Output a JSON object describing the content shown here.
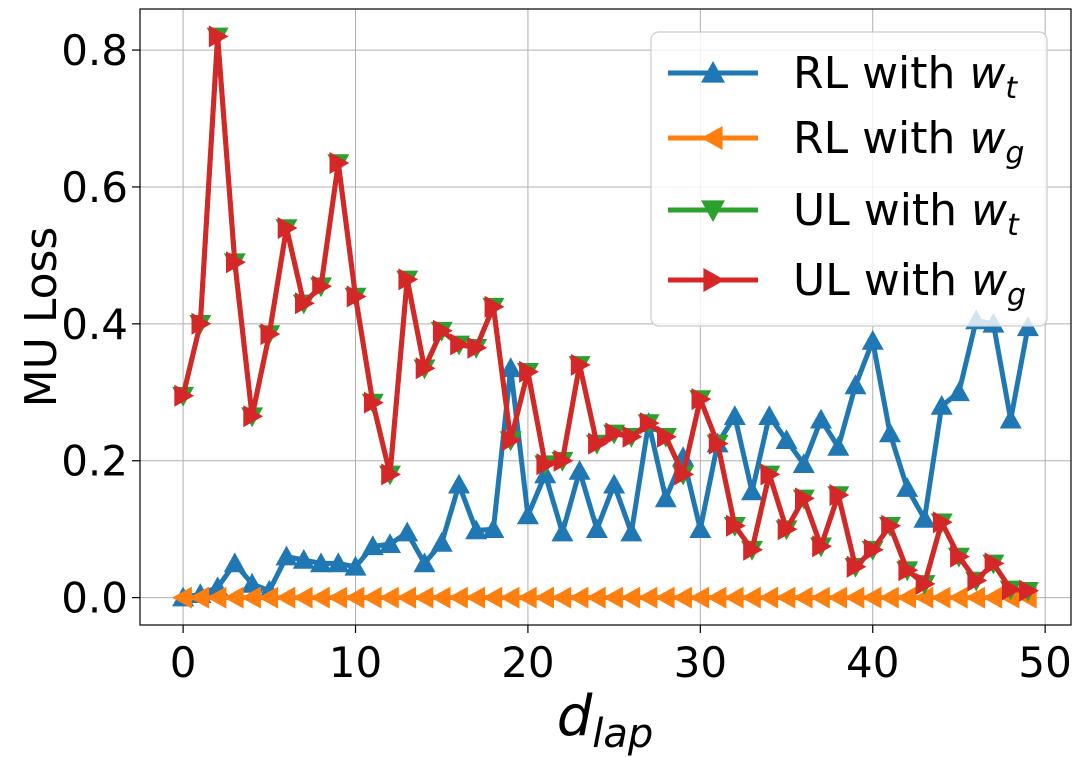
{
  "chart_data": {
    "type": "line",
    "xlabel": "d",
    "xlabel_sub": "lap",
    "ylabel": "MU Loss",
    "xlim": [
      -2.5,
      51.5
    ],
    "ylim": [
      -0.04,
      0.86
    ],
    "xticks": [
      0,
      10,
      20,
      30,
      40,
      50
    ],
    "xtick_labels": [
      "0",
      "10",
      "20",
      "30",
      "40",
      "50"
    ],
    "yticks": [
      0.0,
      0.2,
      0.4,
      0.6,
      0.8
    ],
    "ytick_labels": [
      "0.0",
      "0.2",
      "0.4",
      "0.6",
      "0.8"
    ],
    "grid": true,
    "legend_position": "top-right",
    "x": [
      0,
      1,
      2,
      3,
      4,
      5,
      6,
      7,
      8,
      9,
      10,
      11,
      12,
      13,
      14,
      15,
      16,
      17,
      18,
      19,
      20,
      21,
      22,
      23,
      24,
      25,
      26,
      27,
      28,
      29,
      30,
      31,
      32,
      33,
      34,
      35,
      36,
      37,
      38,
      39,
      40,
      41,
      42,
      43,
      44,
      45,
      46,
      47,
      48,
      49
    ],
    "series": [
      {
        "name": "RL with w",
        "name_var": "w",
        "name_sub": "t",
        "name_prefix": "RL with ",
        "color": "#1f77b4",
        "marker": "triangle-up",
        "values": [
          0.0,
          0.005,
          0.015,
          0.05,
          0.02,
          0.01,
          0.06,
          0.055,
          0.05,
          0.05,
          0.045,
          0.075,
          0.078,
          0.095,
          0.05,
          0.08,
          0.165,
          0.098,
          0.1,
          0.335,
          0.12,
          0.18,
          0.095,
          0.185,
          0.1,
          0.165,
          0.095,
          0.255,
          0.145,
          0.205,
          0.1,
          0.225,
          0.265,
          0.155,
          0.265,
          0.23,
          0.195,
          0.26,
          0.22,
          0.31,
          0.375,
          0.24,
          0.16,
          0.115,
          0.28,
          0.3,
          0.405,
          0.4,
          0.26,
          0.395
        ]
      },
      {
        "name": "RL with w",
        "name_var": "w",
        "name_sub": "g",
        "name_prefix": "RL with ",
        "color": "#ff7f0e",
        "marker": "triangle-left",
        "values": [
          0,
          0,
          0,
          0,
          0,
          0,
          0,
          0,
          0,
          0,
          0,
          0,
          0,
          0,
          0,
          0,
          0,
          0,
          0,
          0,
          0,
          0,
          0,
          0,
          0,
          0,
          0,
          0,
          0,
          0,
          0,
          0,
          0,
          0,
          0,
          0,
          0,
          0,
          0,
          0,
          0,
          0,
          0,
          0,
          0,
          0,
          0,
          0,
          0,
          0
        ]
      },
      {
        "name": "UL with w",
        "name_var": "w",
        "name_sub": "t",
        "name_prefix": "UL with ",
        "color": "#2ca02c",
        "marker": "triangle-down",
        "values": [
          0.295,
          0.4,
          0.82,
          0.49,
          0.265,
          0.385,
          0.54,
          0.43,
          0.455,
          0.635,
          0.44,
          0.285,
          0.18,
          0.465,
          0.335,
          0.39,
          0.37,
          0.365,
          0.425,
          0.23,
          0.33,
          0.195,
          0.2,
          0.34,
          0.225,
          0.24,
          0.235,
          0.255,
          0.235,
          0.18,
          0.29,
          0.225,
          0.105,
          0.07,
          0.18,
          0.1,
          0.145,
          0.075,
          0.15,
          0.045,
          0.07,
          0.105,
          0.04,
          0.02,
          0.11,
          0.06,
          0.025,
          0.05,
          0.012,
          0.01
        ]
      },
      {
        "name": "UL with w",
        "name_var": "w",
        "name_sub": "g",
        "name_prefix": "UL with ",
        "color": "#d62728",
        "marker": "triangle-right",
        "values": [
          0.295,
          0.4,
          0.82,
          0.49,
          0.265,
          0.385,
          0.54,
          0.43,
          0.455,
          0.635,
          0.44,
          0.285,
          0.18,
          0.465,
          0.335,
          0.39,
          0.37,
          0.365,
          0.425,
          0.23,
          0.33,
          0.195,
          0.2,
          0.34,
          0.225,
          0.24,
          0.235,
          0.255,
          0.235,
          0.18,
          0.29,
          0.225,
          0.105,
          0.07,
          0.18,
          0.1,
          0.145,
          0.075,
          0.15,
          0.045,
          0.07,
          0.105,
          0.04,
          0.02,
          0.11,
          0.06,
          0.025,
          0.05,
          0.012,
          0.01
        ]
      }
    ]
  }
}
